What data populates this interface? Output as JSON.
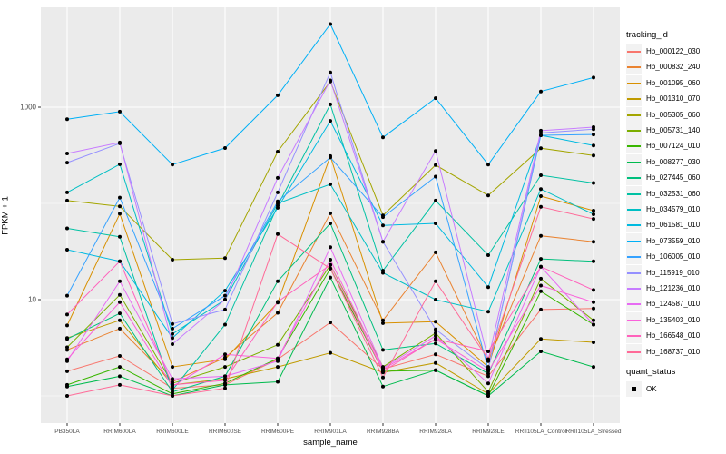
{
  "figure": {
    "y_axis": {
      "title": "FPKM + 1",
      "tick_labels": [
        "1000",
        "10"
      ],
      "tick_values": [
        1000,
        10
      ]
    },
    "x_axis": {
      "title": "sample_name"
    },
    "legend": {
      "tracking_title": "tracking_id",
      "quant_title": "quant_status",
      "quant_item_label": "OK"
    },
    "style": {
      "panel_bg": "#EBEBEB",
      "gridline_color": "#FFFFFF",
      "tick_color": "#333333",
      "tick_label_color": "#4D4D4D",
      "point_color": "#000000",
      "legend_key_bg": "#F2F2F2"
    }
  },
  "chart_data": {
    "type": "line",
    "title": "",
    "xlabel": "sample_name",
    "ylabel": "FPKM + 1",
    "y_scale": "log10",
    "ylim": [
      0.55,
      10000
    ],
    "y_major_gridlines": [
      10,
      1000
    ],
    "y_minor_gridlines": [
      1,
      100
    ],
    "grid": "on",
    "legend_title": "tracking_id",
    "legend_position": "right",
    "marker": "black-point-all-vertices",
    "x": [
      "PB350LA",
      "RRIM600LA",
      "RRIM600LE",
      "RRIM600SE",
      "RRIM600PE",
      "RRIM901LA",
      "RRIM928BA",
      "RRIM928LA",
      "RRIM928LE",
      "RRII105LA_Control",
      "RRII105LA_Stressed"
    ],
    "series": [
      {
        "name": "Hb_000122_030",
        "color": "#F8766D",
        "values": [
          1.8,
          2.6,
          1.2,
          1.3,
          2.4,
          5.8,
          1.9,
          2.7,
          1.6,
          7.9,
          8.1
        ]
      },
      {
        "name": "Hb_000832_240",
        "color": "#EA8331",
        "values": [
          3.0,
          5.0,
          1.4,
          2.5,
          7.3,
          79,
          6.1,
          31,
          2.3,
          46,
          40
        ]
      },
      {
        "name": "Hb_001095_060",
        "color": "#D89000",
        "values": [
          5.4,
          78,
          2.0,
          2.4,
          9.3,
          310,
          5.7,
          5.9,
          2.0,
          119,
          84
        ]
      },
      {
        "name": "Hb_001310_070",
        "color": "#C09B00",
        "values": [
          4.0,
          6.1,
          1.3,
          1.5,
          2.0,
          2.8,
          1.75,
          2.2,
          1.05,
          3.9,
          3.6
        ]
      },
      {
        "name": "Hb_005305_060",
        "color": "#A3A500",
        "values": [
          107,
          93,
          26,
          27,
          345,
          1850,
          75,
          250,
          121,
          375,
          315
        ]
      },
      {
        "name": "Hb_005731_140",
        "color": "#7CAE00",
        "values": [
          3.2,
          11.2,
          1.35,
          2.0,
          3.4,
          23,
          2.0,
          4.5,
          1.1,
          16.5,
          6.1
        ]
      },
      {
        "name": "Hb_007124_010",
        "color": "#39B600",
        "values": [
          1.3,
          2.0,
          1.05,
          1.35,
          2.45,
          21,
          1.8,
          1.85,
          1.0,
          12.2,
          5.5
        ]
      },
      {
        "name": "Hb_008277_030",
        "color": "#00BB4E",
        "values": [
          1.25,
          1.6,
          1.0,
          1.3,
          1.4,
          17,
          1.25,
          1.85,
          1.0,
          2.9,
          2.0
        ]
      },
      {
        "name": "Hb_027445_060",
        "color": "#00BF7D",
        "values": [
          3.9,
          7.2,
          1.1,
          1.6,
          15.5,
          62,
          3.0,
          3.5,
          1.7,
          26.5,
          25
        ]
      },
      {
        "name": "Hb_032531_060",
        "color": "#00C1A3",
        "values": [
          55,
          45,
          1.15,
          5.5,
          95,
          1070,
          20,
          107,
          29,
          196,
          163
        ]
      },
      {
        "name": "Hb_034579_010",
        "color": "#00BFC4",
        "values": [
          130,
          255,
          4.4,
          10,
          100,
          158,
          19,
          10,
          7.5,
          141,
          77
        ]
      },
      {
        "name": "Hb_061581_010",
        "color": "#00BAE0",
        "values": [
          33,
          25,
          4.0,
          12.4,
          90,
          720,
          59,
          62,
          13.5,
          510,
          400
        ]
      },
      {
        "name": "Hb_073559_010",
        "color": "#00B0F6",
        "values": [
          750,
          900,
          253,
          376,
          1330,
          7300,
          485,
          1240,
          253,
          1455,
          2030
        ]
      },
      {
        "name": "Hb_106005_010",
        "color": "#35A2FF",
        "values": [
          11,
          115,
          5.0,
          11,
          105,
          300,
          72,
          190,
          1.9,
          510,
          520
        ]
      },
      {
        "name": "Hb_115919_010",
        "color": "#9590FF",
        "values": [
          265,
          420,
          5.6,
          7.9,
          130,
          2300,
          40,
          4.9,
          1.9,
          540,
          590
        ]
      },
      {
        "name": "Hb_121236_010",
        "color": "#C77CFF",
        "values": [
          330,
          430,
          3.45,
          10,
          184,
          1900,
          40,
          350,
          2.4,
          570,
          620
        ]
      },
      {
        "name": "Hb_124587_010",
        "color": "#E76BF3",
        "values": [
          2.3,
          15.5,
          1.5,
          1.6,
          2.3,
          35,
          1.95,
          4.2,
          1.35,
          22,
          5.5
        ]
      },
      {
        "name": "Hb_135403_010",
        "color": "#FA62DB",
        "values": [
          2.4,
          9.4,
          1.25,
          2.7,
          2.45,
          26,
          1.9,
          3.9,
          1.8,
          14,
          9.4
        ]
      },
      {
        "name": "Hb_166548_010",
        "color": "#FF62BC",
        "values": [
          7.0,
          25,
          1.3,
          1.45,
          9.5,
          23,
          1.8,
          3.9,
          2.9,
          22,
          12.6
        ]
      },
      {
        "name": "Hb_168737_010",
        "color": "#FF6A98",
        "values": [
          1.0,
          1.3,
          1.0,
          1.2,
          48,
          21,
          1.55,
          15.5,
          2.4,
          92,
          69
        ]
      }
    ],
    "quant_status": {
      "title": "quant_status",
      "items": [
        {
          "label": "OK",
          "marker": "black-square"
        }
      ]
    }
  }
}
